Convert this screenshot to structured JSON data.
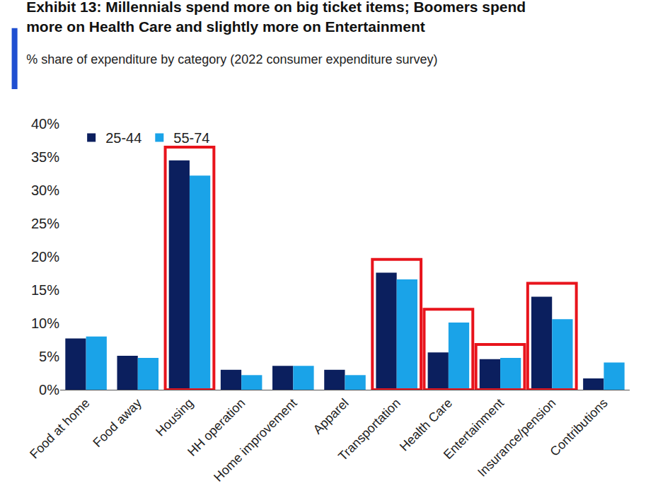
{
  "chart_data": {
    "type": "bar",
    "title": "Exhibit 13: Millennials spend more on big ticket items; Boomers spend more on Health Care and slightly more on Entertainment",
    "subtitle": "% share of expenditure by category (2022 consumer expenditure survey)",
    "categories": [
      "Food at home",
      "Food away",
      "Housing",
      "HH operation",
      "Home improvement",
      "Apparel",
      "Transportation",
      "Health Care",
      "Entertainment",
      "Insurance/pension",
      "Contributions"
    ],
    "series": [
      {
        "name": "25-44",
        "color": "#0b1f5e",
        "values": [
          7.7,
          5.1,
          34.5,
          3.0,
          3.6,
          3.0,
          17.6,
          5.6,
          4.6,
          14.0,
          1.7
        ]
      },
      {
        "name": "55-74",
        "color": "#1aa3e8",
        "values": [
          8.0,
          4.8,
          32.2,
          2.2,
          3.6,
          2.2,
          16.6,
          10.1,
          4.8,
          10.6,
          4.1
        ]
      }
    ],
    "highlight": [
      "Housing",
      "Transportation",
      "Health Care",
      "Entertainment",
      "Insurance/pension"
    ],
    "ylim": [
      0,
      40
    ],
    "yticks": [
      {
        "value": 0,
        "label": "0%"
      },
      {
        "value": 5,
        "label": "5%"
      },
      {
        "value": 10,
        "label": "10%"
      },
      {
        "value": 15,
        "label": "15%"
      },
      {
        "value": 20,
        "label": "20%"
      },
      {
        "value": 25,
        "label": "25%"
      },
      {
        "value": 30,
        "label": "30%"
      },
      {
        "value": 35,
        "label": "35%"
      },
      {
        "value": 40,
        "label": "40%"
      }
    ],
    "grid": false,
    "legend": "top left"
  }
}
